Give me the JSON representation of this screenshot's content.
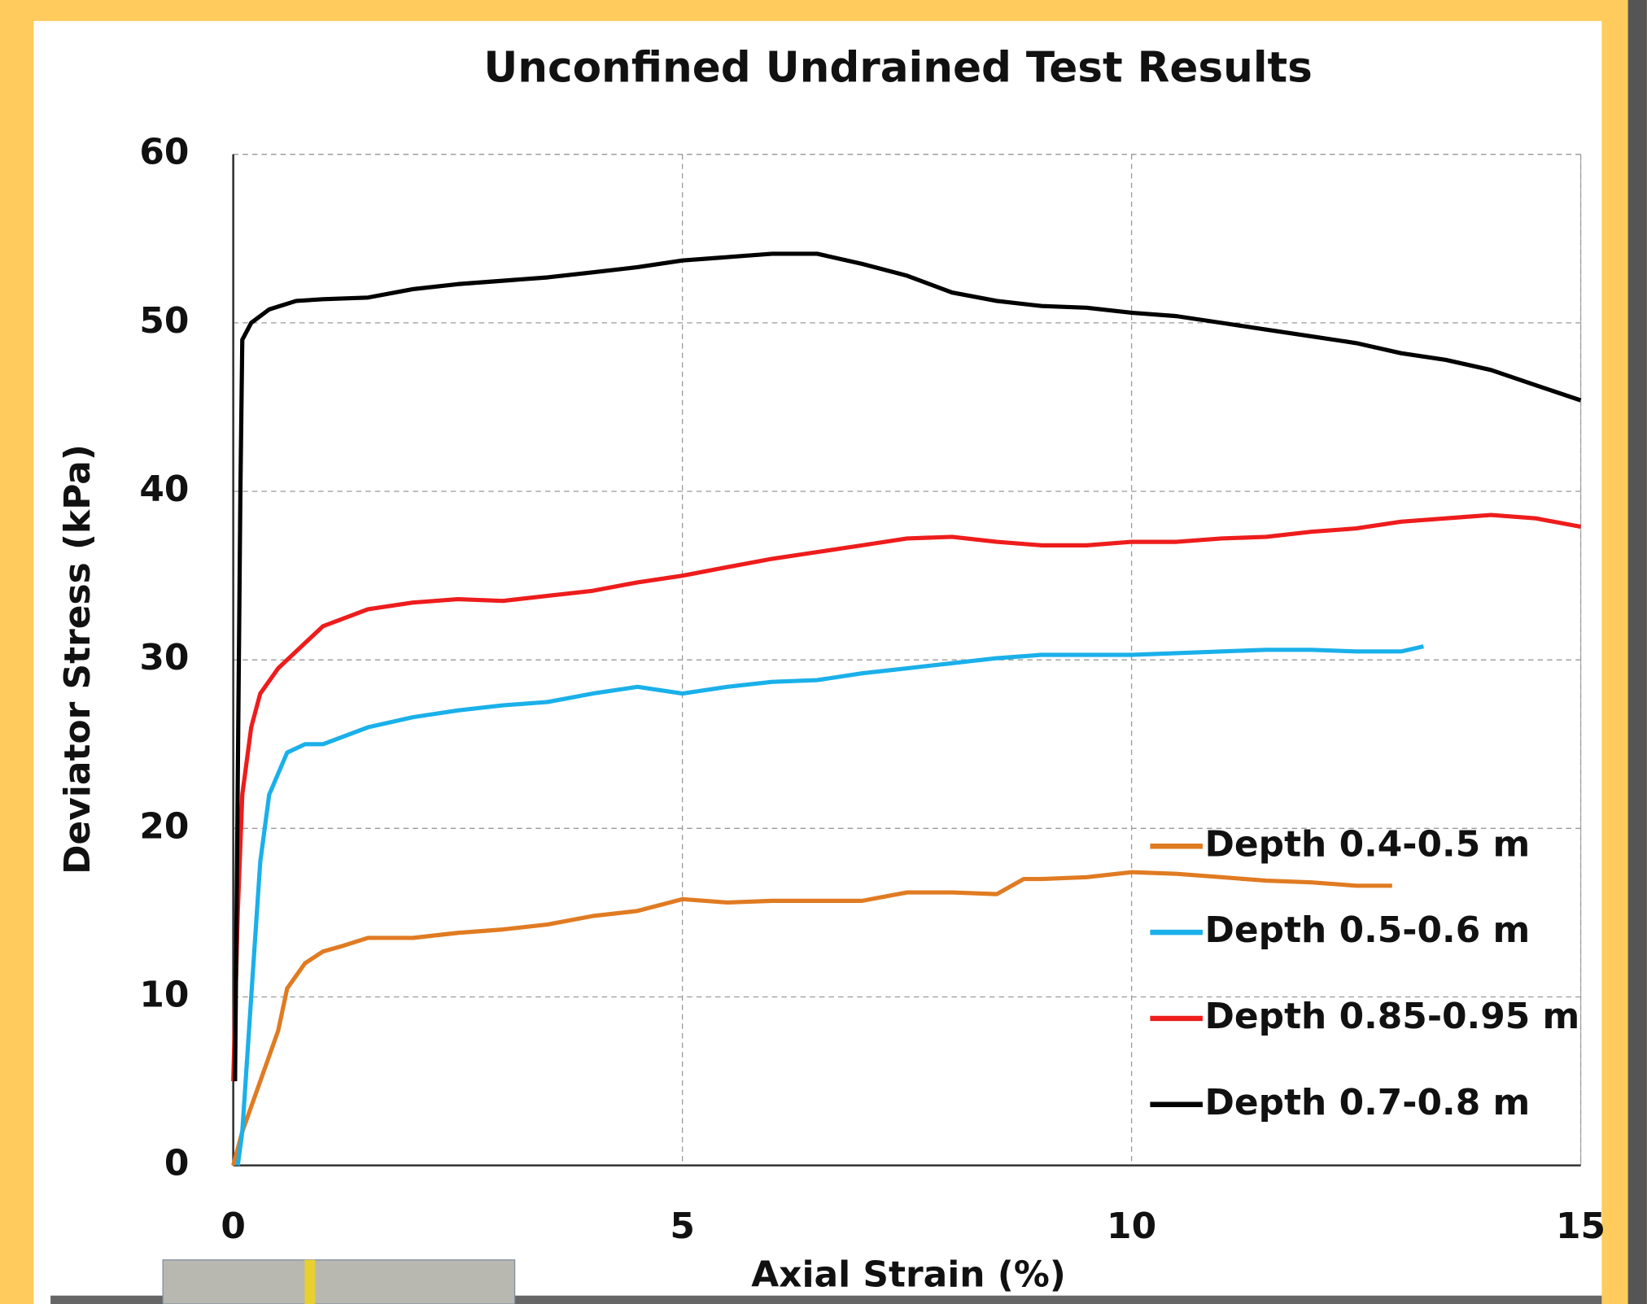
{
  "chart_data": {
    "type": "line",
    "title": "Unconfined Undrained Test Results",
    "x_label": "Axial Strain (%)",
    "y_label": "Deviator Stress (kPa)",
    "xlim": [
      0,
      15
    ],
    "xticks": [
      0,
      5,
      10,
      15
    ],
    "ylim": [
      0,
      60
    ],
    "yticks": [
      0,
      10,
      20,
      30,
      40,
      50,
      60
    ],
    "grid": true,
    "legend": "lower right",
    "series": [
      {
        "name": "Depth 0.4-0.5 m",
        "color": "#e07b22",
        "x": [
          0,
          0.1,
          0.3,
          0.5,
          0.6,
          0.8,
          1,
          1.2,
          1.5,
          2,
          2.5,
          3,
          3.5,
          4,
          4.5,
          5,
          5.5,
          6,
          7,
          7.5,
          8,
          8.5,
          8.8,
          9,
          9.5,
          10,
          10.5,
          11,
          11.5,
          12,
          12.5,
          12.9
        ],
        "values": [
          0,
          2,
          5,
          8,
          10.5,
          12,
          12.7,
          13,
          13.5,
          13.5,
          13.8,
          14,
          14.3,
          14.8,
          15.1,
          15.8,
          15.6,
          15.7,
          15.7,
          16.2,
          16.2,
          16.1,
          17,
          17,
          17.1,
          17.4,
          17.3,
          17.1,
          16.9,
          16.8,
          16.6,
          16.6
        ]
      },
      {
        "name": "Depth 0.5-0.6 m",
        "color": "#1ab0ea",
        "x": [
          0.05,
          0.1,
          0.2,
          0.3,
          0.4,
          0.6,
          0.8,
          1,
          1.5,
          2,
          2.5,
          3,
          3.5,
          4,
          4.5,
          5,
          5.5,
          6,
          6.5,
          7,
          7.5,
          8,
          8.5,
          9,
          9.5,
          10,
          10.5,
          11,
          11.5,
          12,
          12.5,
          13,
          13.25
        ],
        "values": [
          0,
          2,
          10,
          18,
          22,
          24.5,
          25,
          25,
          26,
          26.6,
          27,
          27.3,
          27.5,
          28,
          28.4,
          28,
          28.4,
          28.7,
          28.8,
          29.2,
          29.5,
          29.8,
          30.1,
          30.3,
          30.3,
          30.3,
          30.4,
          30.5,
          30.6,
          30.6,
          30.5,
          30.5,
          30.8
        ]
      },
      {
        "name": "Depth 0.85-0.95 m",
        "color": "#ee1c1c",
        "x": [
          0,
          0.05,
          0.1,
          0.2,
          0.3,
          0.5,
          0.8,
          1,
          1.5,
          2,
          2.5,
          3,
          3.5,
          4,
          4.5,
          5,
          5.5,
          6,
          6.5,
          7,
          7.5,
          8,
          8.5,
          9,
          9.5,
          10,
          10.5,
          11,
          11.5,
          12,
          12.5,
          13,
          13.5,
          14,
          14.5,
          15
        ],
        "values": [
          5,
          15,
          22,
          26,
          28,
          29.5,
          31,
          32,
          33,
          33.4,
          33.6,
          33.5,
          33.8,
          34.1,
          34.6,
          35,
          35.5,
          36,
          36.4,
          36.8,
          37.2,
          37.3,
          37,
          36.8,
          36.8,
          37,
          37,
          37.2,
          37.3,
          37.6,
          37.8,
          38.2,
          38.4,
          38.6,
          38.4,
          37.9
        ]
      },
      {
        "name": "Depth 0.7-0.8 m",
        "color": "#000000",
        "x": [
          0.02,
          0.08,
          0.1,
          0.2,
          0.4,
          0.7,
          1,
          1.5,
          2,
          2.5,
          3,
          3.5,
          4,
          4.5,
          5,
          5.5,
          6,
          6.5,
          7,
          7.5,
          8,
          8.5,
          9,
          9.5,
          10,
          10.5,
          11,
          11.5,
          12,
          12.5,
          13,
          13.5,
          14,
          14.5,
          15
        ],
        "values": [
          5,
          40,
          49,
          50,
          50.8,
          51.3,
          51.4,
          51.5,
          52,
          52.3,
          52.5,
          52.7,
          53,
          53.3,
          53.7,
          53.9,
          54.1,
          54.1,
          53.5,
          52.8,
          51.8,
          51.3,
          51,
          50.9,
          50.6,
          50.4,
          50,
          49.6,
          49.2,
          48.8,
          48.2,
          47.8,
          47.2,
          46.3,
          45.4
        ]
      }
    ]
  }
}
